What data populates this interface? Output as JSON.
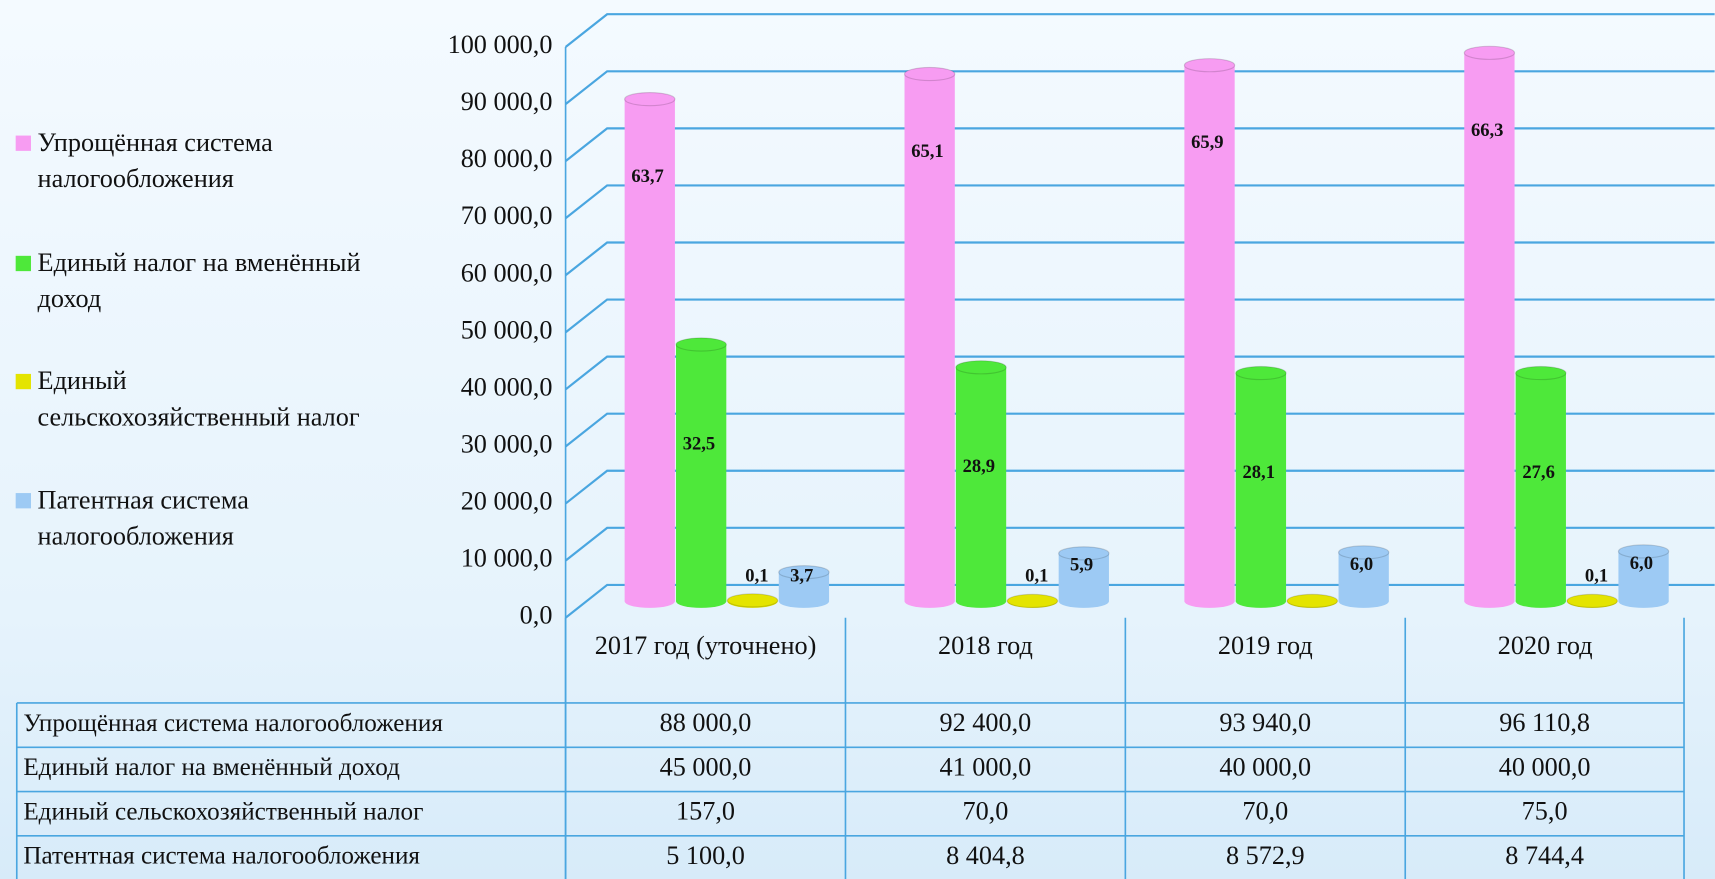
{
  "chart_data": {
    "type": "bar3d",
    "categories": [
      "2017 год (уточнено)",
      "2018 год",
      "2019 год",
      "2020 год"
    ],
    "series": [
      {
        "name": "Упрощённая система налогообложения",
        "color": "#f79cf2",
        "values": [
          88000.0,
          92400.0,
          93940.0,
          96110.8
        ],
        "value_labels": [
          "88 000,0",
          "92 400,0",
          "93 940,0",
          "96 110,8"
        ],
        "share_labels": [
          "63,7",
          "65,1",
          "65,9",
          "66,3"
        ]
      },
      {
        "name": "Единый налог на вменённый доход",
        "color": "#4ee83a",
        "values": [
          45000.0,
          41000.0,
          40000.0,
          40000.0
        ],
        "value_labels": [
          "45 000,0",
          "41 000,0",
          "40 000,0",
          "40 000,0"
        ],
        "share_labels": [
          "32,5",
          "28,9",
          "28,1",
          "27,6"
        ]
      },
      {
        "name": "Единый сельскохозяйственный налог",
        "color": "#e4e400",
        "values": [
          157.0,
          70.0,
          70.0,
          75.0
        ],
        "value_labels": [
          "157,0",
          "70,0",
          "70,0",
          "75,0"
        ],
        "share_labels": [
          "0,1",
          "0,1",
          null,
          "0,1"
        ]
      },
      {
        "name": "Патентная система налогообложения",
        "color": "#9dcaf4",
        "values": [
          5100.0,
          8404.8,
          8572.9,
          8744.4
        ],
        "value_labels": [
          "5 100,0",
          "8 404,8",
          "8 572,9",
          "8 744,4"
        ],
        "share_labels": [
          "3,7",
          "5,9",
          "6,0",
          "6,0"
        ]
      }
    ],
    "ylim": [
      0,
      100000
    ],
    "yticks": [
      {
        "value": 0,
        "label": "0,0"
      },
      {
        "value": 10000,
        "label": "10 000,0"
      },
      {
        "value": 20000,
        "label": "20 000,0"
      },
      {
        "value": 30000,
        "label": "30 000,0"
      },
      {
        "value": 40000,
        "label": "40 000,0"
      },
      {
        "value": 50000,
        "label": "50 000,0"
      },
      {
        "value": 60000,
        "label": "60 000,0"
      },
      {
        "value": 70000,
        "label": "70 000,0"
      },
      {
        "value": 80000,
        "label": "80 000,0"
      },
      {
        "value": 90000,
        "label": "90 000,0"
      },
      {
        "value": 100000,
        "label": "100 000,0"
      }
    ],
    "grid": true,
    "legend": "left"
  }
}
